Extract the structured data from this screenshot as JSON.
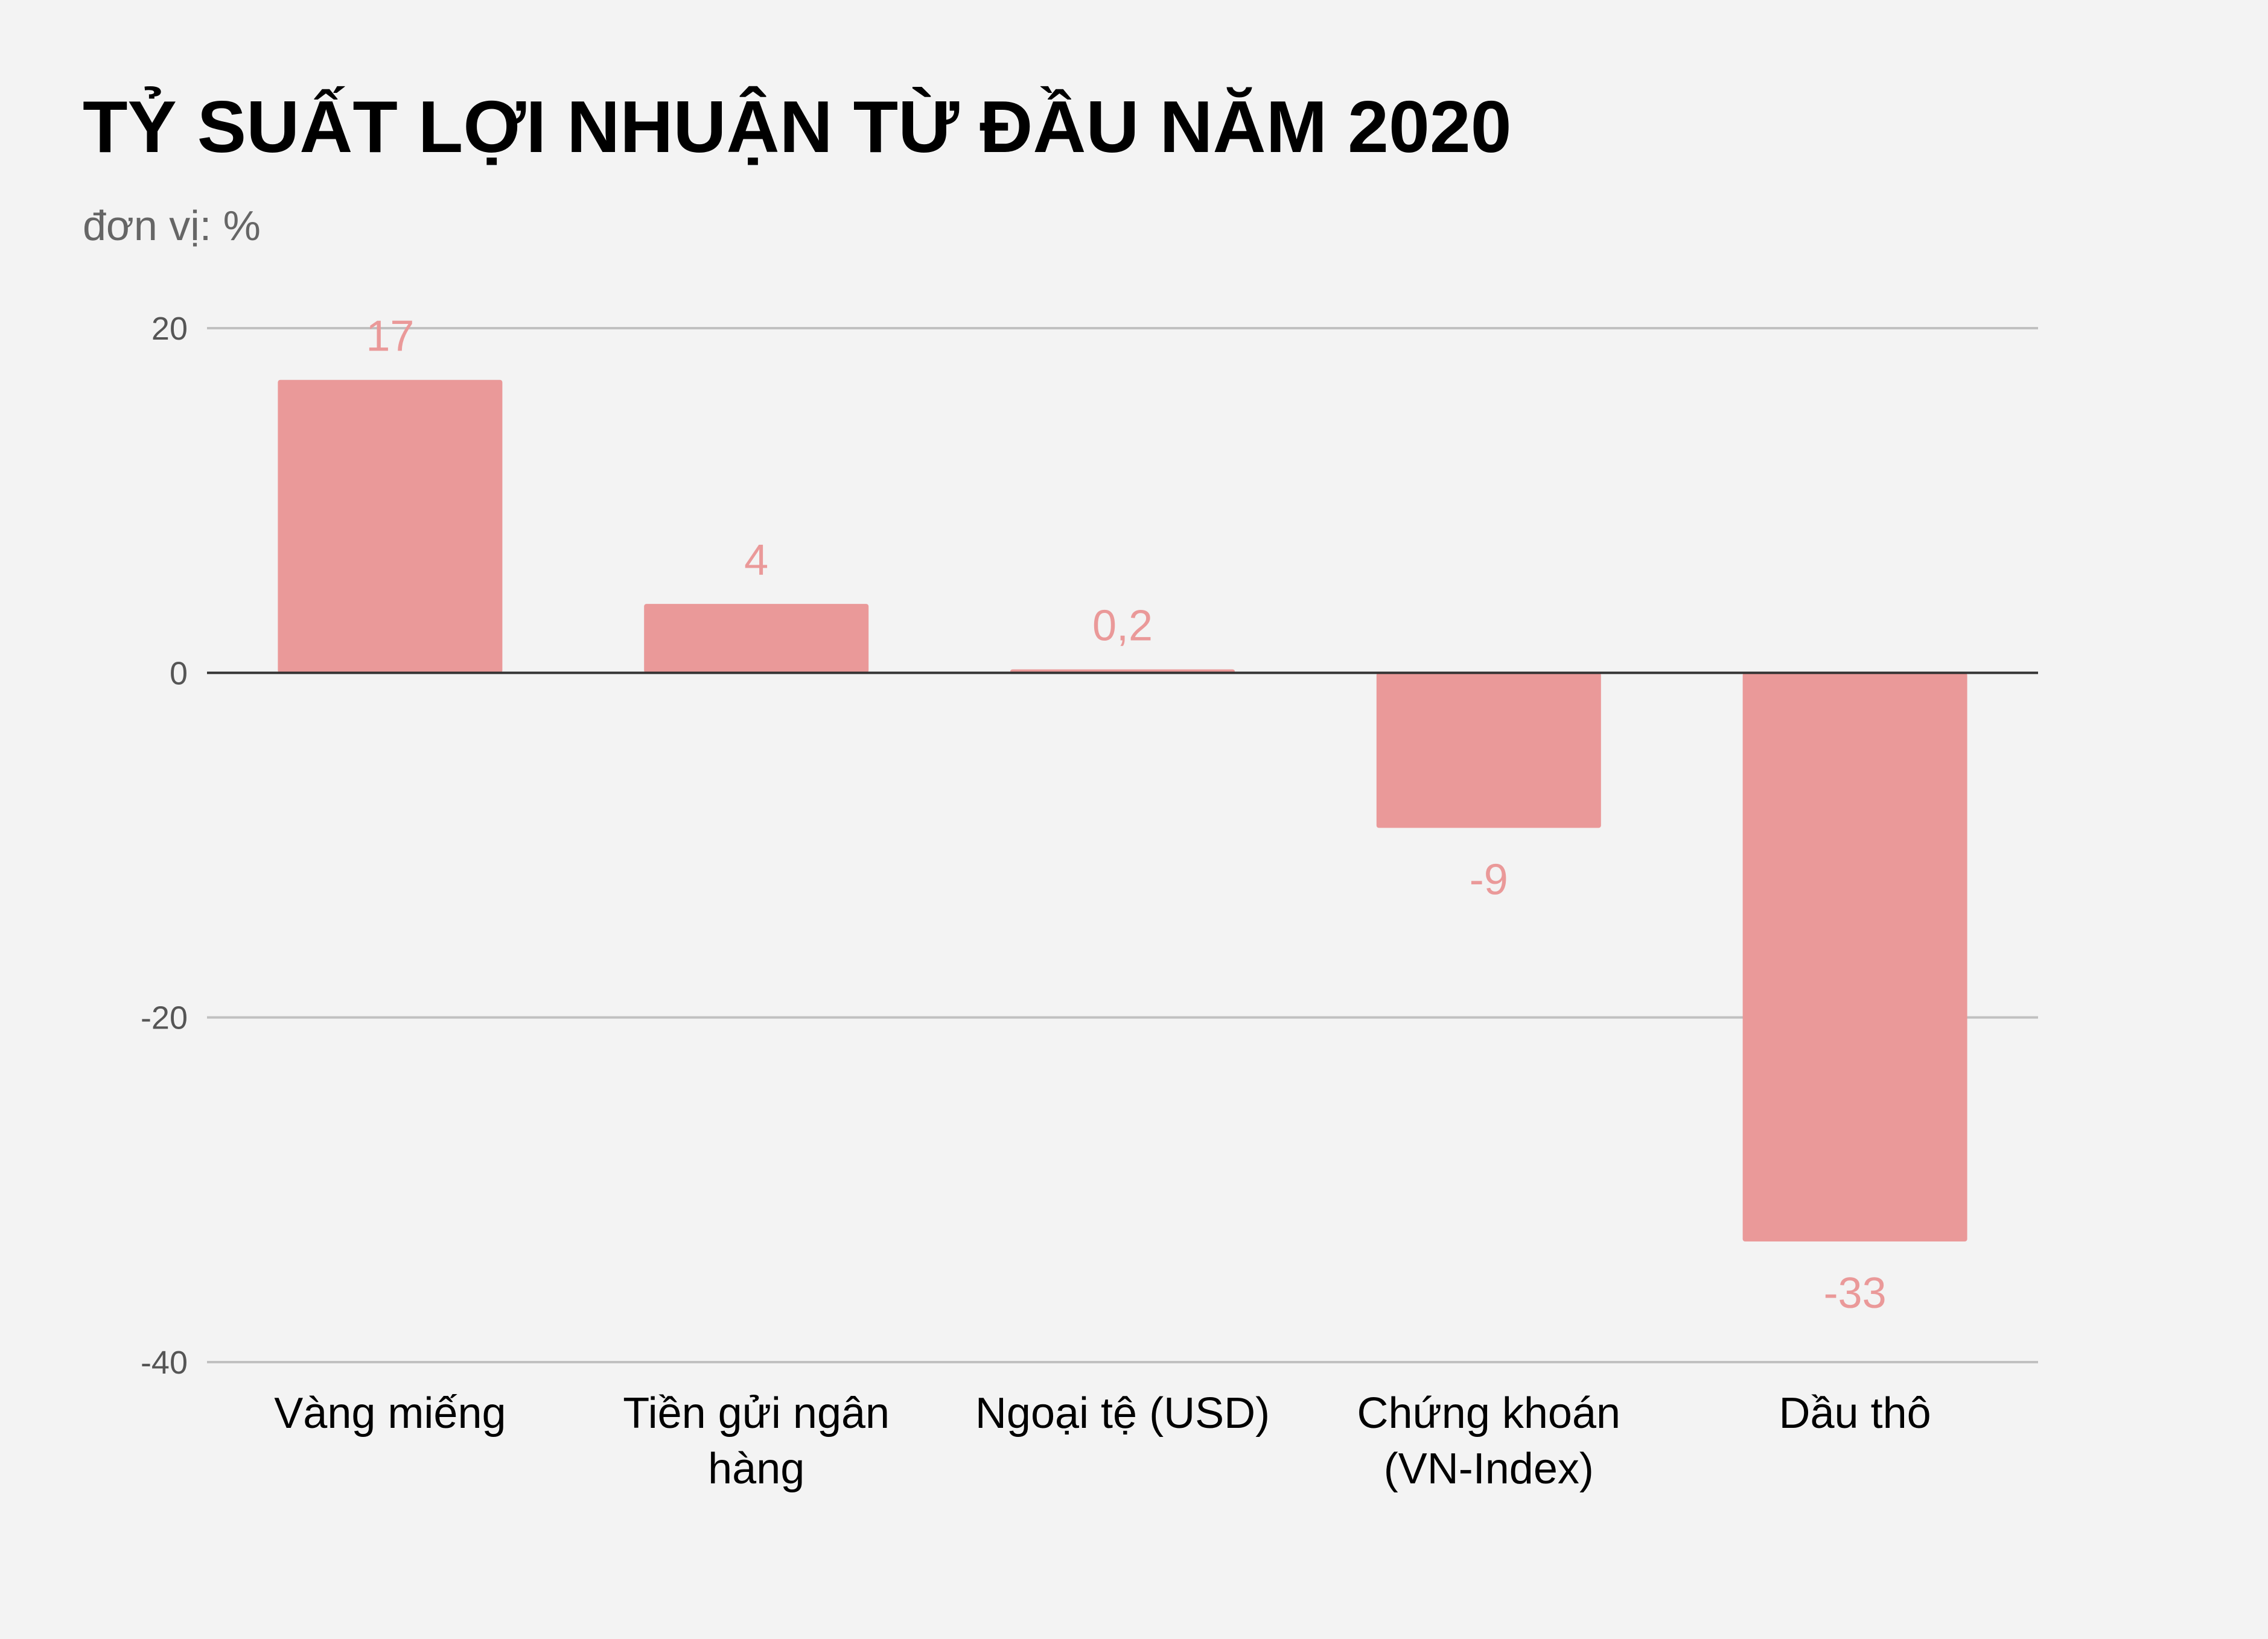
{
  "chart_data": {
    "type": "bar",
    "title": "TỶ SUẤT LỢI NHUẬN TỪ ĐẦU NĂM 2020",
    "subtitle": "đơn vị: %",
    "categories": [
      [
        "Vàng miếng"
      ],
      [
        "Tiền gửi ngân",
        "hàng"
      ],
      [
        "Ngoại tệ (USD)"
      ],
      [
        "Chứng khoán",
        "(VN-Index)"
      ],
      [
        "Dầu thô"
      ]
    ],
    "values": [
      17,
      4,
      0.2,
      -9,
      -33
    ],
    "data_labels": [
      "17",
      "4",
      "0,2",
      "-9",
      "-33"
    ],
    "ylim": [
      -40,
      20
    ],
    "yticks": [
      20,
      0,
      -20,
      -40
    ],
    "ytick_labels": [
      "20",
      "0",
      "-20",
      "-40"
    ],
    "grid": true,
    "xlabel": "",
    "ylabel": "",
    "colors": {
      "bar": "#ea9999",
      "label": "#ea9999",
      "grid": "#c0c0c0",
      "zero_line": "#333333",
      "background": "#f3f3f3"
    }
  }
}
